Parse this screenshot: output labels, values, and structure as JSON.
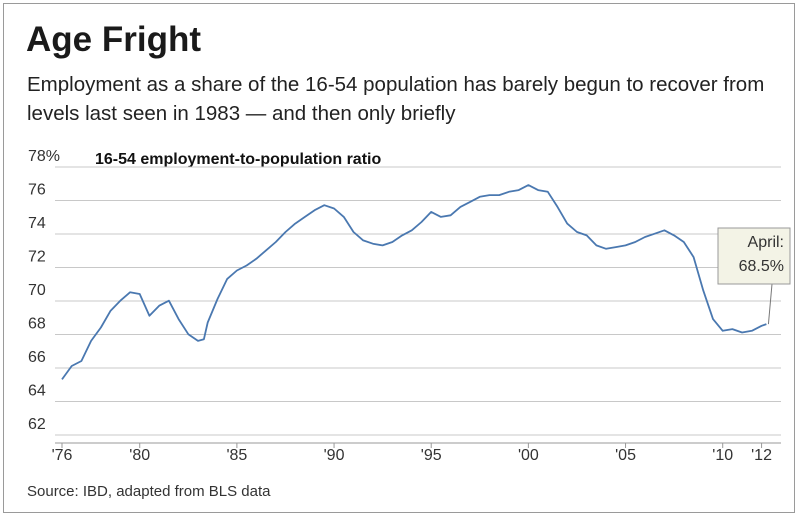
{
  "chart_data": {
    "type": "line",
    "title": "Age Fright",
    "subtitle": "Employment as a share of the 16-54 population has barely begun to recover from levels last seen in 1983 — and then only briefly",
    "ylabel": "16-54 employment-to-population ratio",
    "source": "Source: IBD, adapted from BLS data",
    "annotation": [
      "April:",
      "68.5%"
    ],
    "color": "#4a78b0",
    "x": [
      1976,
      1976.5,
      1977,
      1977.5,
      1978,
      1978.5,
      1979,
      1979.5,
      1980,
      1980.5,
      1981,
      1981.5,
      1982,
      1982.5,
      1983,
      1983.3,
      1983.5,
      1984,
      1984.5,
      1985,
      1985.5,
      1986,
      1986.5,
      1987,
      1987.5,
      1988,
      1988.5,
      1989,
      1989.5,
      1990,
      1990.5,
      1991,
      1991.5,
      1992,
      1992.5,
      1993,
      1993.5,
      1994,
      1994.5,
      1995,
      1995.5,
      1996,
      1996.5,
      1997,
      1997.5,
      1998,
      1998.5,
      1999,
      1999.5,
      2000,
      2000.5,
      2001,
      2001.5,
      2002,
      2002.5,
      2003,
      2003.5,
      2004,
      2004.5,
      2005,
      2005.5,
      2006,
      2006.5,
      2007,
      2007.5,
      2008,
      2008.5,
      2009,
      2009.5,
      2010,
      2010.5,
      2011,
      2011.5,
      2012,
      2012.25
    ],
    "values": [
      65.2,
      66.0,
      66.3,
      67.5,
      68.3,
      69.3,
      69.9,
      70.4,
      70.3,
      69.0,
      69.6,
      69.9,
      68.8,
      67.9,
      67.5,
      67.6,
      68.6,
      70.0,
      71.2,
      71.7,
      72.0,
      72.4,
      72.9,
      73.4,
      74.0,
      74.5,
      74.9,
      75.3,
      75.6,
      75.4,
      74.9,
      74.0,
      73.5,
      73.3,
      73.2,
      73.4,
      73.8,
      74.1,
      74.6,
      75.2,
      74.9,
      75.0,
      75.5,
      75.8,
      76.1,
      76.2,
      76.2,
      76.4,
      76.5,
      76.8,
      76.5,
      76.4,
      75.5,
      74.5,
      74.0,
      73.8,
      73.2,
      73.0,
      73.1,
      73.2,
      73.4,
      73.7,
      73.9,
      74.1,
      73.8,
      73.4,
      72.5,
      70.5,
      68.8,
      68.1,
      68.2,
      68.0,
      68.1,
      68.4,
      68.5
    ],
    "xlim": [
      1976,
      2013
    ],
    "ylim": [
      62,
      78
    ],
    "xticks": [
      {
        "value": 1976,
        "label": "'76"
      },
      {
        "value": 1980,
        "label": "'80"
      },
      {
        "value": 1985,
        "label": "'85"
      },
      {
        "value": 1990,
        "label": "'90"
      },
      {
        "value": 1995,
        "label": "'95"
      },
      {
        "value": 2000,
        "label": "'00"
      },
      {
        "value": 2005,
        "label": "'05"
      },
      {
        "value": 2010,
        "label": "'10"
      },
      {
        "value": 2012,
        "label": "'12"
      }
    ],
    "yticks": [
      62,
      64,
      66,
      68,
      70,
      72,
      74,
      76,
      {
        "value": 78,
        "label": "78%"
      }
    ],
    "grid": true
  }
}
